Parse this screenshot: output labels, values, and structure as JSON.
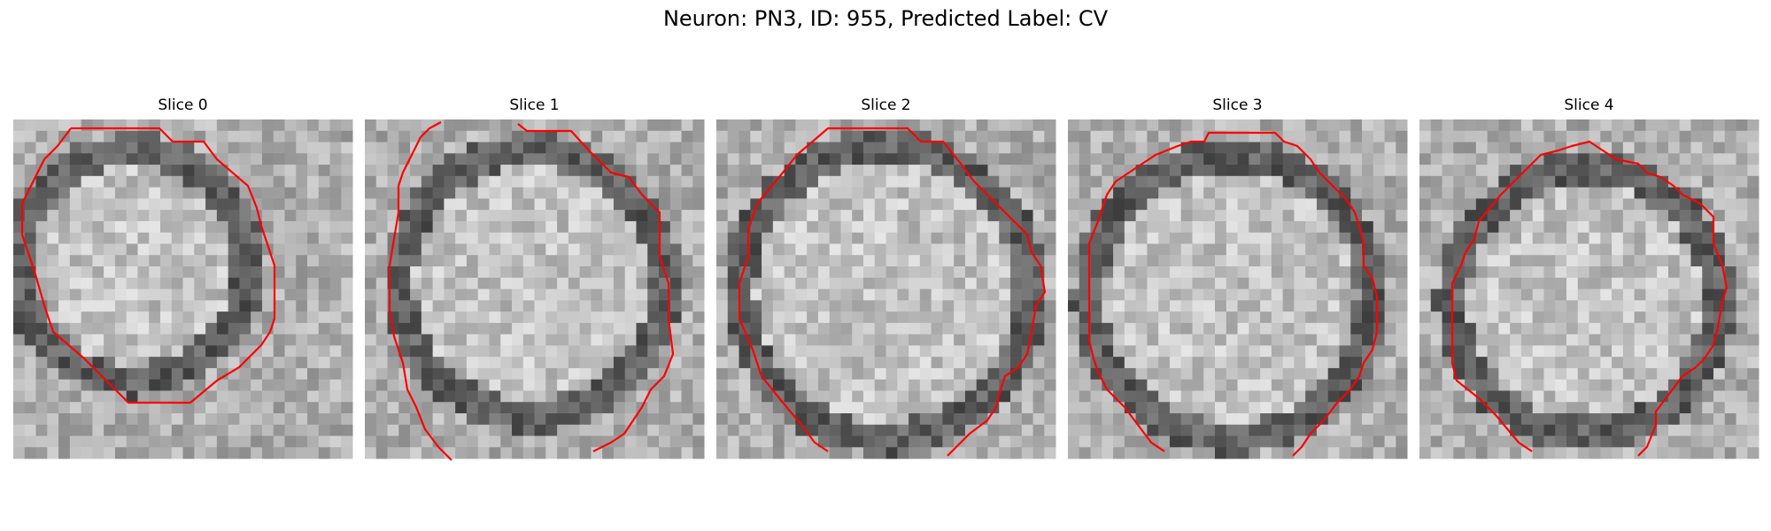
{
  "figure": {
    "title": "Neuron: PN3, ID: 955, Predicted Label: CV"
  },
  "panels": [
    {
      "title": "Slice 0",
      "outline_color": "#ff0000"
    },
    {
      "title": "Slice 1",
      "outline_color": "#ff0000"
    },
    {
      "title": "Slice 2",
      "outline_color": "#ff0000"
    },
    {
      "title": "Slice 3",
      "outline_color": "#ff0000"
    },
    {
      "title": "Slice 4",
      "outline_color": "#ff0000"
    }
  ],
  "colormap": "gray"
}
